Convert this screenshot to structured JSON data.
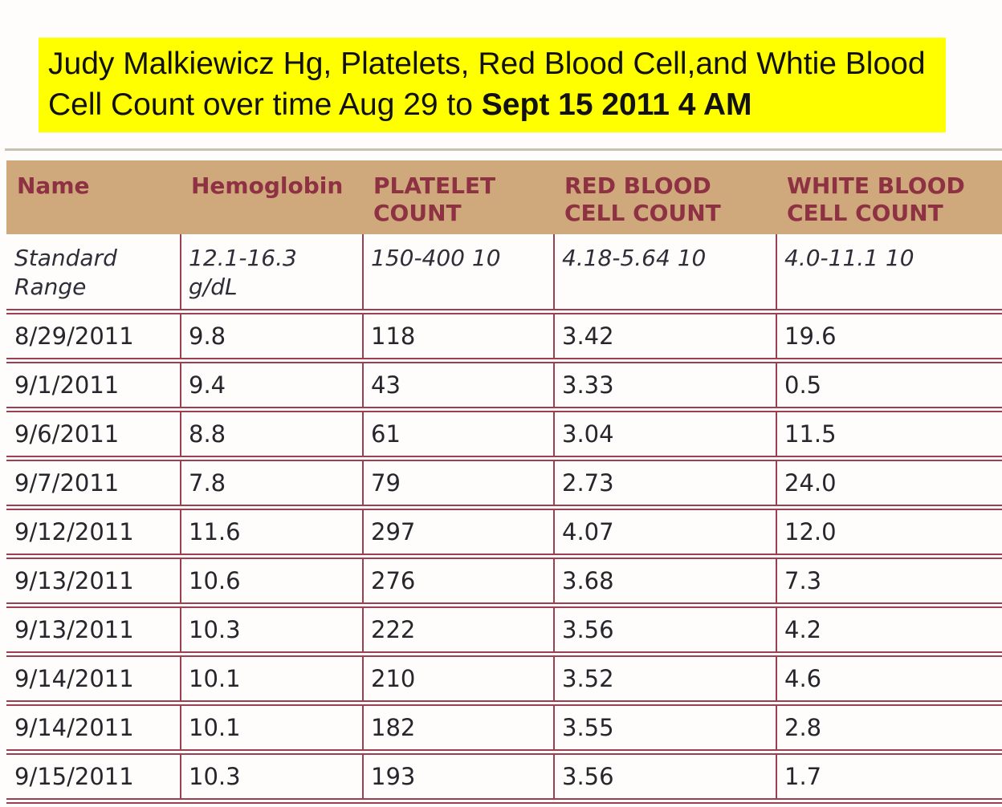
{
  "title": {
    "line1": "Judy Malkiewicz Hg, Platelets, Red Blood Cell,and Whtie Blood",
    "line2_normal": "Cell Count over time Aug 29 to ",
    "line2_bold": "Sept 15 2011 4 AM",
    "highlight_color": "#ffff00"
  },
  "table": {
    "columns": [
      "Name",
      "Hemoglobin",
      "PLATELET COUNT",
      "RED BLOOD CELL COUNT",
      "WHITE BLOOD CELL COUNT"
    ],
    "standard_range": {
      "label": "Standard Range",
      "hemoglobin": "12.1-16.3 g/dL",
      "platelet_count": "150-400 10",
      "red_blood_cell_count": "4.18-5.64 10",
      "white_blood_cell_count": "4.0-11.1 10"
    },
    "rows": [
      {
        "date": "8/29/2011",
        "hemoglobin": "9.8",
        "platelet_count": "118",
        "red_blood_cell_count": "3.42",
        "white_blood_cell_count": "19.6"
      },
      {
        "date": "9/1/2011",
        "hemoglobin": "9.4",
        "platelet_count": "43",
        "red_blood_cell_count": "3.33",
        "white_blood_cell_count": "0.5"
      },
      {
        "date": "9/6/2011",
        "hemoglobin": "8.8",
        "platelet_count": "61",
        "red_blood_cell_count": "3.04",
        "white_blood_cell_count": "11.5"
      },
      {
        "date": "9/7/2011",
        "hemoglobin": "7.8",
        "platelet_count": "79",
        "red_blood_cell_count": "2.73",
        "white_blood_cell_count": "24.0"
      },
      {
        "date": "9/12/2011",
        "hemoglobin": "11.6",
        "platelet_count": "297",
        "red_blood_cell_count": "4.07",
        "white_blood_cell_count": "12.0"
      },
      {
        "date": "9/13/2011",
        "hemoglobin": "10.6",
        "platelet_count": "276",
        "red_blood_cell_count": "3.68",
        "white_blood_cell_count": "7.3"
      },
      {
        "date": "9/13/2011",
        "hemoglobin": "10.3",
        "platelet_count": "222",
        "red_blood_cell_count": "3.56",
        "white_blood_cell_count": "4.2"
      },
      {
        "date": "9/14/2011",
        "hemoglobin": "10.1",
        "platelet_count": "210",
        "red_blood_cell_count": "3.52",
        "white_blood_cell_count": "4.6"
      },
      {
        "date": "9/14/2011",
        "hemoglobin": "10.1",
        "platelet_count": "182",
        "red_blood_cell_count": "3.55",
        "white_blood_cell_count": "2.8"
      },
      {
        "date": "9/15/2011",
        "hemoglobin": "10.3",
        "platelet_count": "193",
        "red_blood_cell_count": "3.56",
        "white_blood_cell_count": "1.7"
      }
    ]
  },
  "colors": {
    "header_background": "#cfa87c",
    "header_text": "#8d3143",
    "table_border": "#9c4051",
    "divider": "#c6c1b4",
    "title_highlight": "#ffff00",
    "body_text": "#26262c"
  },
  "chart_data": {
    "type": "table",
    "title": "Judy Malkiewicz Hg, Platelets, Red Blood Cell,and Whtie Blood Cell Count over time Aug 29 to Sept 15 2011 4 AM",
    "columns": [
      "Name",
      "Hemoglobin",
      "PLATELET COUNT",
      "RED BLOOD CELL COUNT",
      "WHITE BLOOD CELL COUNT"
    ],
    "standard_range": [
      "12.1-16.3 g/dL",
      "150-400 10",
      "4.18-5.64 10",
      "4.0-11.1 10"
    ],
    "dates": [
      "8/29/2011",
      "9/1/2011",
      "9/6/2011",
      "9/7/2011",
      "9/12/2011",
      "9/13/2011",
      "9/13/2011",
      "9/14/2011",
      "9/14/2011",
      "9/15/2011"
    ],
    "series": [
      {
        "name": "Hemoglobin",
        "values": [
          9.8,
          9.4,
          8.8,
          7.8,
          11.6,
          10.6,
          10.3,
          10.1,
          10.1,
          10.3
        ]
      },
      {
        "name": "Platelet Count",
        "values": [
          118,
          43,
          61,
          79,
          297,
          276,
          222,
          210,
          182,
          193
        ]
      },
      {
        "name": "Red Blood Cell Count",
        "values": [
          3.42,
          3.33,
          3.04,
          2.73,
          4.07,
          3.68,
          3.56,
          3.52,
          3.55,
          3.56
        ]
      },
      {
        "name": "White Blood Cell Count",
        "values": [
          19.6,
          0.5,
          11.5,
          24.0,
          12.0,
          7.3,
          4.2,
          4.6,
          2.8,
          1.7
        ]
      }
    ]
  }
}
